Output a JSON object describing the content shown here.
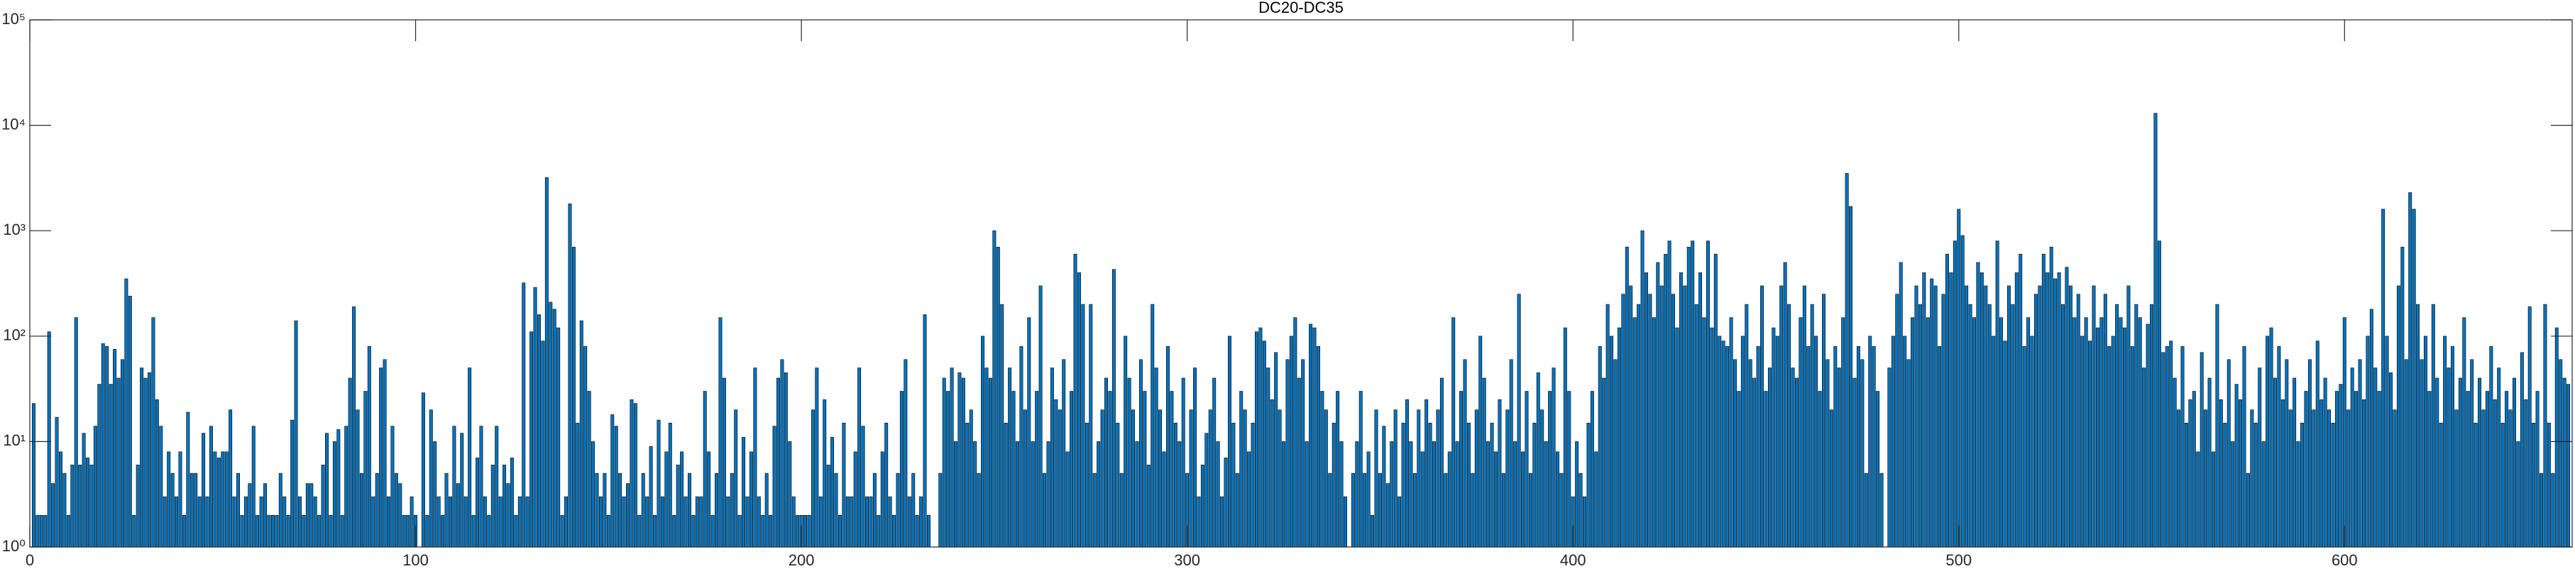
{
  "chart_data": {
    "type": "bar",
    "title": "DC20-DC35",
    "color": "#0072bd",
    "yscale": "log",
    "xlim": [
      0,
      659
    ],
    "ylim": [
      1,
      100000
    ],
    "xticks": [
      0,
      100,
      200,
      300,
      400,
      500,
      600
    ],
    "yticks": [
      {
        "value": 1,
        "label": "10⁰"
      },
      {
        "value": 10,
        "label": "10¹"
      },
      {
        "value": 100,
        "label": "10²"
      },
      {
        "value": 1000,
        "label": "10³"
      },
      {
        "value": 10000,
        "label": "10⁴"
      },
      {
        "value": 100000,
        "label": "10⁵"
      }
    ],
    "x": [
      1,
      2,
      3,
      4,
      5,
      6,
      7,
      8,
      9,
      10,
      11,
      12,
      13,
      14,
      15,
      16,
      17,
      18,
      19,
      20,
      21,
      22,
      23,
      24,
      25,
      26,
      27,
      28,
      29,
      30,
      31,
      32,
      33,
      34,
      35,
      36,
      37,
      38,
      39,
      40,
      41,
      42,
      43,
      44,
      45,
      46,
      47,
      48,
      49,
      50,
      51,
      52,
      53,
      54,
      55,
      56,
      57,
      58,
      59,
      60,
      61,
      62,
      63,
      64,
      65,
      66,
      67,
      68,
      69,
      70,
      71,
      72,
      73,
      74,
      75,
      76,
      77,
      78,
      79,
      80,
      81,
      82,
      83,
      84,
      85,
      86,
      87,
      88,
      89,
      90,
      91,
      92,
      93,
      94,
      95,
      96,
      97,
      98,
      99,
      100,
      101,
      102,
      103,
      104,
      105,
      106,
      107,
      108,
      109,
      110,
      111,
      112,
      113,
      114,
      115,
      116,
      117,
      118,
      119,
      120,
      121,
      122,
      123,
      124,
      125,
      126,
      127,
      128,
      129,
      130,
      131,
      132,
      133,
      134,
      135,
      136,
      137,
      138,
      139,
      140,
      141,
      142,
      143,
      144,
      145,
      146,
      147,
      148,
      149,
      150,
      151,
      152,
      153,
      154,
      155,
      156,
      157,
      158,
      159,
      160,
      161,
      162,
      163,
      164,
      165,
      166,
      167,
      168,
      169,
      170,
      171,
      172,
      173,
      174,
      175,
      176,
      177,
      178,
      179,
      180,
      181,
      182,
      183,
      184,
      185,
      186,
      187,
      188,
      189,
      190,
      191,
      192,
      193,
      194,
      195,
      196,
      197,
      198,
      199,
      200,
      201,
      202,
      203,
      204,
      205,
      206,
      207,
      208,
      209,
      210,
      211,
      212,
      213,
      214,
      215,
      216,
      217,
      218,
      219,
      220,
      221,
      222,
      223,
      224,
      225,
      226,
      227,
      228,
      229,
      230,
      231,
      232,
      233,
      234,
      235,
      236,
      237,
      238,
      239,
      240,
      241,
      242,
      243,
      244,
      245,
      246,
      247,
      248,
      249,
      250,
      251,
      252,
      253,
      254,
      255,
      256,
      257,
      258,
      259,
      260,
      261,
      262,
      263,
      264,
      265,
      266,
      267,
      268,
      269,
      270,
      271,
      272,
      273,
      274,
      275,
      276,
      277,
      278,
      279,
      280,
      281,
      282,
      283,
      284,
      285,
      286,
      287,
      288,
      289,
      290,
      291,
      292,
      293,
      294,
      295,
      296,
      297,
      298,
      299,
      300,
      301,
      302,
      303,
      304,
      305,
      306,
      307,
      308,
      309,
      310,
      311,
      312,
      313,
      314,
      315,
      316,
      317,
      318,
      319,
      320,
      321,
      322,
      323,
      324,
      325,
      326,
      327,
      328,
      329,
      330,
      331,
      332,
      333,
      334,
      335,
      336,
      337,
      338,
      339,
      340,
      341,
      342,
      343,
      344,
      345,
      346,
      347,
      348,
      349,
      350,
      351,
      352,
      353,
      354,
      355,
      356,
      357,
      358,
      359,
      360,
      361,
      362,
      363,
      364,
      365,
      366,
      367,
      368,
      369,
      370,
      371,
      372,
      373,
      374,
      375,
      376,
      377,
      378,
      379,
      380,
      381,
      382,
      383,
      384,
      385,
      386,
      387,
      388,
      389,
      390,
      391,
      392,
      393,
      394,
      395,
      396,
      397,
      398,
      399,
      400,
      401,
      402,
      403,
      404,
      405,
      406,
      407,
      408,
      409,
      410,
      411,
      412,
      413,
      414,
      415,
      416,
      417,
      418,
      419,
      420,
      421,
      422,
      423,
      424,
      425,
      426,
      427,
      428,
      429,
      430,
      431,
      432,
      433,
      434,
      435,
      436,
      437,
      438,
      439,
      440,
      441,
      442,
      443,
      444,
      445,
      446,
      447,
      448,
      449,
      450,
      451,
      452,
      453,
      454,
      455,
      456,
      457,
      458,
      459,
      460,
      461,
      462,
      463,
      464,
      465,
      466,
      467,
      468,
      469,
      470,
      471,
      472,
      473,
      474,
      475,
      476,
      477,
      478,
      479,
      480,
      481,
      482,
      483,
      484,
      485,
      486,
      487,
      488,
      489,
      490,
      491,
      492,
      493,
      494,
      495,
      496,
      497,
      498,
      499,
      500,
      501,
      502,
      503,
      504,
      505,
      506,
      507,
      508,
      509,
      510,
      511,
      512,
      513,
      514,
      515,
      516,
      517,
      518,
      519,
      520,
      521,
      522,
      523,
      524,
      525,
      526,
      527,
      528,
      529,
      530,
      531,
      532,
      533,
      534,
      535,
      536,
      537,
      538,
      539,
      540,
      541,
      542,
      543,
      544,
      545,
      546,
      547,
      548,
      549,
      550,
      551,
      552,
      553,
      554,
      555,
      556,
      557,
      558,
      559,
      560,
      561,
      562,
      563,
      564,
      565,
      566,
      567,
      568,
      569,
      570,
      571,
      572,
      573,
      574,
      575,
      576,
      577,
      578,
      579,
      580,
      581,
      582,
      583,
      584,
      585,
      586,
      587,
      588,
      589,
      590,
      591,
      592,
      593,
      594,
      595,
      596,
      597,
      598,
      599,
      600,
      601,
      602,
      603,
      604,
      605,
      606,
      607,
      608,
      609,
      610,
      611,
      612,
      613,
      614,
      615,
      616,
      617,
      618,
      619,
      620,
      621,
      622,
      623,
      624,
      625,
      626,
      627,
      628,
      629,
      630,
      631,
      632,
      633,
      634,
      635,
      636,
      637,
      638,
      639,
      640,
      641,
      642,
      643,
      644,
      645,
      646,
      647,
      648,
      649,
      650,
      651,
      652,
      653,
      654,
      655,
      656,
      657,
      658
    ],
    "values": [
      23,
      2,
      2,
      2,
      110,
      4,
      17,
      8,
      5,
      2,
      6,
      150,
      6,
      12,
      7,
      6,
      14,
      35,
      85,
      80,
      35,
      75,
      40,
      60,
      350,
      240,
      2,
      6,
      50,
      40,
      45,
      150,
      25,
      14,
      3,
      8,
      5,
      3,
      8,
      2,
      19,
      5,
      5,
      3,
      12,
      3,
      14,
      8,
      7,
      8,
      8,
      20,
      3,
      5,
      2,
      3,
      4,
      14,
      2,
      3,
      4,
      2,
      2,
      2,
      5,
      3,
      2,
      16,
      140,
      3,
      2,
      4,
      4,
      3,
      2,
      6,
      12,
      2,
      10,
      13,
      2,
      14,
      40,
      190,
      20,
      5,
      30,
      80,
      3,
      5,
      50,
      60,
      3,
      14,
      5,
      4,
      2,
      2,
      3,
      2,
      1,
      29,
      2,
      20,
      10,
      3,
      2,
      5,
      3,
      14,
      4,
      12,
      3,
      50,
      2,
      7,
      14,
      3,
      2,
      6,
      14,
      3,
      6,
      4,
      7,
      2,
      3,
      320,
      3,
      110,
      290,
      160,
      90,
      3200,
      210,
      180,
      120,
      2,
      3,
      1800,
      700,
      15,
      140,
      80,
      30,
      10,
      5,
      3,
      5,
      2,
      18,
      14,
      5,
      3,
      4,
      25,
      23,
      2,
      5,
      3,
      9,
      2,
      16,
      3,
      8,
      15,
      2,
      6,
      8,
      3,
      5,
      2,
      3,
      3,
      30,
      8,
      2,
      5,
      150,
      40,
      3,
      5,
      20,
      2,
      11,
      3,
      8,
      50,
      3,
      2,
      5,
      2,
      14,
      40,
      60,
      45,
      10,
      3,
      2,
      2,
      2,
      2,
      20,
      50,
      3,
      25,
      6,
      11,
      5,
      2,
      15,
      3,
      3,
      8,
      50,
      14,
      3,
      3,
      5,
      2,
      8,
      15,
      3,
      2,
      5,
      30,
      60,
      3,
      5,
      2,
      3,
      160,
      2,
      1,
      1,
      5,
      40,
      30,
      50,
      10,
      45,
      40,
      15,
      20,
      10,
      5,
      100,
      50,
      40,
      1000,
      700,
      200,
      15,
      50,
      30,
      10,
      80,
      20,
      150,
      10,
      30,
      300,
      5,
      10,
      50,
      25,
      20,
      60,
      8,
      30,
      600,
      400,
      200,
      15,
      200,
      5,
      10,
      20,
      40,
      30,
      430,
      15,
      5,
      100,
      40,
      20,
      10,
      60,
      30,
      6,
      200,
      50,
      20,
      8,
      80,
      30,
      15,
      10,
      40,
      5,
      20,
      50,
      3,
      6,
      12,
      20,
      40,
      10,
      3,
      7,
      100,
      15,
      5,
      30,
      20,
      8,
      15,
      110,
      120,
      90,
      50,
      25,
      70,
      20,
      10,
      60,
      100,
      150,
      40,
      60,
      10,
      130,
      120,
      80,
      30,
      20,
      5,
      15,
      30,
      10,
      3,
      1,
      5,
      10,
      30,
      5,
      8,
      2,
      20,
      5,
      14,
      4,
      10,
      20,
      3,
      15,
      25,
      10,
      5,
      20,
      8,
      25,
      15,
      10,
      20,
      40,
      5,
      8,
      150,
      10,
      30,
      60,
      15,
      5,
      20,
      100,
      40,
      10,
      15,
      8,
      25,
      5,
      20,
      60,
      10,
      250,
      8,
      30,
      5,
      15,
      45,
      20,
      10,
      30,
      50,
      8,
      5,
      120,
      30,
      3,
      10,
      5,
      3,
      15,
      30,
      8,
      80,
      40,
      200,
      100,
      60,
      120,
      250,
      700,
      300,
      150,
      200,
      1000,
      400,
      250,
      150,
      500,
      300,
      600,
      800,
      250,
      120,
      400,
      300,
      700,
      800,
      200,
      400,
      150,
      800,
      120,
      600,
      100,
      90,
      80,
      150,
      60,
      30,
      100,
      200,
      60,
      40,
      80,
      300,
      30,
      50,
      120,
      100,
      300,
      500,
      200,
      50,
      40,
      150,
      300,
      80,
      200,
      100,
      30,
      250,
      60,
      20,
      80,
      50,
      150,
      3500,
      1700,
      40,
      80,
      60,
      5,
      100,
      80,
      30,
      5,
      1,
      50,
      100,
      250,
      500,
      100,
      60,
      150,
      300,
      200,
      400,
      150,
      350,
      300,
      80,
      250,
      600,
      400,
      800,
      1600,
      900,
      300,
      200,
      150,
      500,
      400,
      300,
      200,
      100,
      800,
      150,
      90,
      300,
      200,
      400,
      600,
      80,
      150,
      100,
      250,
      300,
      600,
      400,
      700,
      350,
      400,
      200,
      450,
      300,
      150,
      250,
      100,
      150,
      90,
      300,
      120,
      150,
      250,
      80,
      100,
      200,
      150,
      120,
      300,
      80,
      200,
      150,
      50,
      130,
      200,
      13000,
      800,
      70,
      80,
      90,
      40,
      20,
      80,
      15,
      25,
      30,
      8,
      70,
      20,
      40,
      8,
      200,
      25,
      15,
      60,
      10,
      35,
      25,
      80,
      5,
      20,
      15,
      50,
      10,
      100,
      120,
      40,
      80,
      25,
      60,
      20,
      40,
      10,
      15,
      30,
      60,
      20,
      90,
      25,
      40,
      20,
      15,
      30,
      35,
      150,
      20,
      50,
      30,
      60,
      25,
      100,
      180,
      50,
      30,
      1600,
      100,
      45,
      20,
      300,
      700,
      60,
      2300,
      1600,
      200,
      60,
      100,
      30,
      200,
      40,
      15,
      100,
      50,
      80,
      20,
      40,
      150,
      30,
      60,
      15,
      40,
      20,
      30,
      80,
      25,
      50,
      15,
      30,
      20,
      40,
      10,
      70,
      25,
      190,
      15,
      30,
      5,
      200,
      15,
      5,
      120,
      60,
      40,
      35
    ]
  }
}
